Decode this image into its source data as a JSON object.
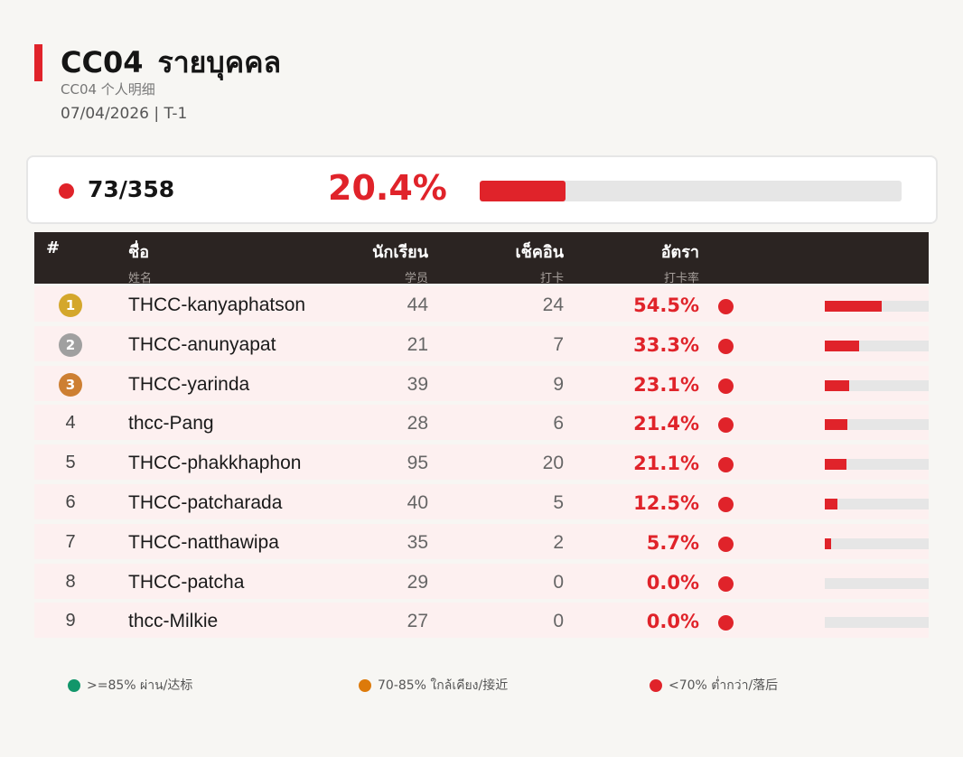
{
  "header": {
    "code": "CC04",
    "title_th": "รายบุคคล",
    "subtitle": "CC04  个人明细",
    "date_line": "07/04/2026  |  T-1"
  },
  "summary": {
    "count": "73/358",
    "rate": "20.4%",
    "rate_fraction": 0.204,
    "status_color": "#e0232a"
  },
  "table": {
    "columns": {
      "rank": {
        "label": "#"
      },
      "name": {
        "label": "ชื่อ",
        "sub": "姓名"
      },
      "students": {
        "label": "นักเรียน",
        "sub": "学员"
      },
      "checkin": {
        "label": "เช็คอิน",
        "sub": "打卡"
      },
      "rate": {
        "label": "อัตรา",
        "sub": "打卡率"
      }
    },
    "rows": [
      {
        "rank": "1",
        "medal": "gold-medal",
        "name": "THCC-kanyaphatson",
        "students": "44",
        "checkin": "24",
        "rate": "54.5%",
        "rate_fraction": 0.545
      },
      {
        "rank": "2",
        "medal": "silver-medal",
        "name": "THCC-anunyapat",
        "students": "21",
        "checkin": "7",
        "rate": "33.3%",
        "rate_fraction": 0.333
      },
      {
        "rank": "3",
        "medal": "bronze-medal",
        "name": "THCC-yarinda",
        "students": "39",
        "checkin": "9",
        "rate": "23.1%",
        "rate_fraction": 0.231
      },
      {
        "rank": "4",
        "name": "thcc-Pang",
        "students": "28",
        "checkin": "6",
        "rate": "21.4%",
        "rate_fraction": 0.214
      },
      {
        "rank": "5",
        "name": "THCC-phakkhaphon",
        "students": "95",
        "checkin": "20",
        "rate": "21.1%",
        "rate_fraction": 0.211
      },
      {
        "rank": "6",
        "name": "THCC-patcharada",
        "students": "40",
        "checkin": "5",
        "rate": "12.5%",
        "rate_fraction": 0.125
      },
      {
        "rank": "7",
        "name": "THCC-natthawipa",
        "students": "35",
        "checkin": "2",
        "rate": "5.7%",
        "rate_fraction": 0.057
      },
      {
        "rank": "8",
        "name": "THCC-patcha",
        "students": "29",
        "checkin": "0",
        "rate": "0.0%",
        "rate_fraction": 0.0
      },
      {
        "rank": "9",
        "name": "thcc-Milkie",
        "students": "27",
        "checkin": "0",
        "rate": "0.0%",
        "rate_fraction": 0.0
      }
    ]
  },
  "legend": {
    "pass": {
      "text": ">=85% ผ่าน/达标",
      "color": "#12966a"
    },
    "near": {
      "text": "70-85% ใกล้เคียง/接近",
      "color": "#dd7a0a"
    },
    "behind": {
      "text": "<70% ต่ำกว่า/落后",
      "color": "#e0232a"
    }
  },
  "colors": {
    "accent": "#e0232a",
    "header_bg": "#2b2422",
    "row_bg": "#fdf0f0",
    "gold": "#d4a72c",
    "silver": "#a0a0a0",
    "bronze": "#cd7f32"
  }
}
